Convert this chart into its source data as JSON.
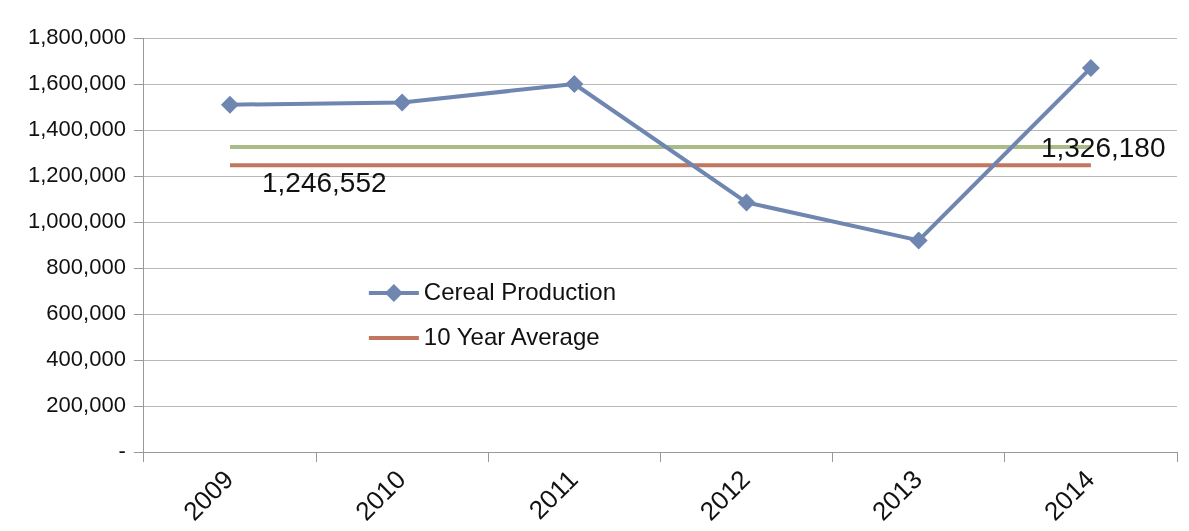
{
  "chart_data": {
    "type": "line",
    "categories": [
      "2009",
      "2010",
      "2011",
      "2012",
      "2013",
      "2014"
    ],
    "series": [
      {
        "name": "Cereal Production",
        "color": "#6f86b0",
        "marker": "diamond",
        "values": [
          1510000,
          1520000,
          1600000,
          1085000,
          920000,
          1670000
        ]
      },
      {
        "name": "10 Year Average",
        "color": "#c0765f",
        "marker": "none",
        "values": [
          1246552,
          1246552,
          1246552,
          1246552,
          1246552,
          1246552
        ],
        "value_labels": [
          "1,246,552",
          null,
          null,
          null,
          null,
          null
        ]
      },
      {
        "color": "#a9bb86",
        "marker": "none",
        "values": [
          1326180,
          1326180,
          1326180,
          1326180,
          1326180,
          1326180
        ],
        "value_labels": [
          null,
          null,
          null,
          null,
          null,
          "1,326,180"
        ]
      }
    ],
    "ylim": [
      0,
      1800000
    ],
    "yticks": [
      {
        "value": 0,
        "label": "-"
      },
      {
        "value": 200000,
        "label": "200,000"
      },
      {
        "value": 400000,
        "label": "400,000"
      },
      {
        "value": 600000,
        "label": "600,000"
      },
      {
        "value": 800000,
        "label": "800,000"
      },
      {
        "value": 1000000,
        "label": "1,000,000"
      },
      {
        "value": 1200000,
        "label": "1,200,000"
      },
      {
        "value": 1400000,
        "label": "1,400,000"
      },
      {
        "value": 1600000,
        "label": "1,600,000"
      },
      {
        "value": 1800000,
        "label": "1,800,000"
      }
    ],
    "grid": "y",
    "legend": "center"
  }
}
